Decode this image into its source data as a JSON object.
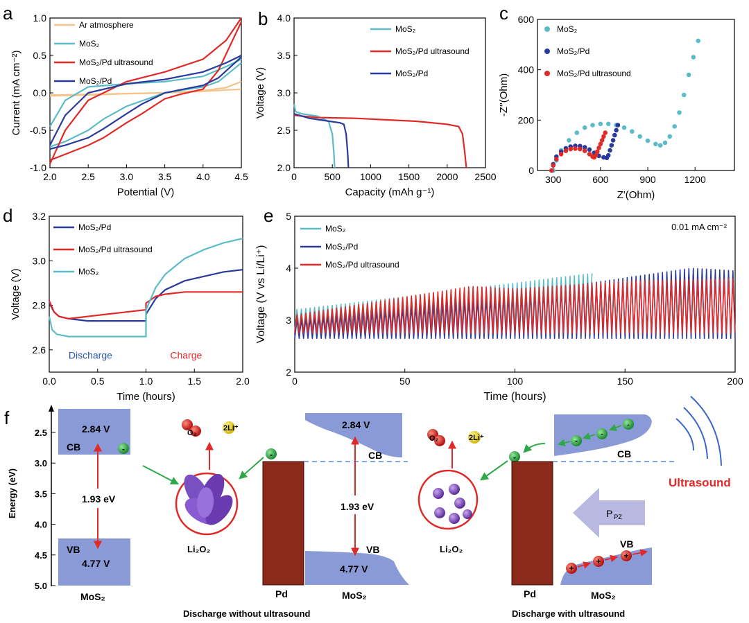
{
  "colors": {
    "ar": "#f5c48a",
    "mos2": "#5bbcc8",
    "pd": "#2a3a9a",
    "us": "#e02a28",
    "band": "#8a9ad6",
    "pdbar": "#8b2a1a",
    "arrow_green": "#2fa84a",
    "arrow_red": "#e02a28",
    "ultrasound": "#e02a28",
    "ppz": "#b8b8e0",
    "text_blue": "#2a5ab0"
  },
  "chart_data": [
    {
      "panel": "a",
      "type": "line",
      "xlabel": "Potential (V)",
      "ylabel": "Current (mA cm⁻²)",
      "xlim": [
        2.0,
        4.5
      ],
      "ylim": [
        -1.0,
        1.0
      ],
      "xticks": [
        "2.0",
        "2.5",
        "3.0",
        "3.5",
        "4.0",
        "4.5"
      ],
      "yticks": [
        "-1.0",
        "-0.5",
        "0.0",
        "0.5",
        "1.0"
      ],
      "legend": "top-left",
      "series": [
        {
          "name": "Ar atmosphere",
          "color": "ar",
          "loops": [
            {
              "x": [
                2.0,
                2.5,
                3.0,
                3.5,
                4.0,
                4.3,
                4.5
              ],
              "y": [
                -0.03,
                -0.02,
                -0.01,
                0.0,
                0.03,
                0.07,
                0.15
              ]
            },
            {
              "x": [
                4.5,
                4.0,
                3.5,
                3.0,
                2.5,
                2.0
              ],
              "y": [
                0.05,
                0.02,
                0.0,
                -0.01,
                -0.03,
                -0.04
              ]
            }
          ]
        },
        {
          "name": "MoS₂",
          "color": "mos2",
          "loops": [
            {
              "x": [
                2.0,
                2.2,
                2.5,
                3.0,
                3.5,
                4.0,
                4.3,
                4.5
              ],
              "y": [
                -0.45,
                -0.1,
                0.08,
                0.12,
                0.15,
                0.22,
                0.35,
                0.45
              ]
            },
            {
              "x": [
                4.5,
                4.2,
                4.0,
                3.5,
                3.0,
                2.7,
                2.5,
                2.2,
                2.0
              ],
              "y": [
                0.4,
                0.15,
                0.08,
                0.0,
                -0.18,
                -0.35,
                -0.5,
                -0.65,
                -0.72
              ]
            }
          ]
        },
        {
          "name": "MoS₂/Pd ultrasound",
          "color": "us",
          "loops": [
            {
              "x": [
                2.0,
                2.2,
                2.5,
                3.0,
                3.5,
                4.0,
                4.3,
                4.5
              ],
              "y": [
                -0.95,
                -0.5,
                -0.1,
                0.15,
                0.28,
                0.45,
                0.7,
                1.0
              ]
            },
            {
              "x": [
                4.5,
                4.2,
                4.0,
                3.7,
                3.5,
                3.2,
                3.0,
                2.7,
                2.5,
                2.2,
                2.0
              ],
              "y": [
                0.95,
                0.3,
                0.05,
                -0.02,
                -0.08,
                -0.28,
                -0.4,
                -0.6,
                -0.7,
                -0.82,
                -0.9
              ]
            }
          ]
        },
        {
          "name": "MoS₂/Pd",
          "color": "pd",
          "loops": [
            {
              "x": [
                2.0,
                2.2,
                2.5,
                3.0,
                3.5,
                4.0,
                4.3,
                4.5
              ],
              "y": [
                -0.7,
                -0.3,
                0.0,
                0.12,
                0.18,
                0.28,
                0.4,
                0.5
              ]
            },
            {
              "x": [
                4.5,
                4.2,
                4.0,
                3.5,
                3.2,
                3.0,
                2.7,
                2.5,
                2.2,
                2.0
              ],
              "y": [
                0.48,
                0.2,
                0.1,
                0.0,
                -0.15,
                -0.28,
                -0.48,
                -0.6,
                -0.7,
                -0.75
              ]
            }
          ]
        }
      ]
    },
    {
      "panel": "b",
      "type": "line",
      "xlabel": "Capacity (mAh g⁻¹)",
      "ylabel": "Voltage (V)",
      "xlim": [
        0,
        2500
      ],
      "ylim": [
        2.0,
        4.0
      ],
      "xticks": [
        "0",
        "500",
        "1000",
        "1500",
        "2000",
        "2500"
      ],
      "yticks": [
        "2.0",
        "2.5",
        "3.0",
        "3.5",
        "4.0"
      ],
      "legend": "top-right",
      "series": [
        {
          "name": "MoS₂",
          "color": "mos2",
          "x": [
            0,
            20,
            100,
            300,
            450,
            500,
            520,
            530
          ],
          "y": [
            2.85,
            2.75,
            2.72,
            2.69,
            2.62,
            2.45,
            2.2,
            2.0
          ]
        },
        {
          "name": "MoS₂/Pd ultrasound",
          "color": "us",
          "x": [
            0,
            300,
            800,
            1200,
            1600,
            2000,
            2150,
            2200,
            2230,
            2250
          ],
          "y": [
            2.7,
            2.67,
            2.66,
            2.64,
            2.62,
            2.58,
            2.55,
            2.45,
            2.2,
            2.0
          ]
        },
        {
          "name": "MoS₂/Pd",
          "color": "pd",
          "x": [
            0,
            200,
            400,
            600,
            650,
            680,
            700,
            710
          ],
          "y": [
            2.72,
            2.66,
            2.63,
            2.6,
            2.58,
            2.45,
            2.2,
            2.0
          ]
        }
      ]
    },
    {
      "panel": "c",
      "type": "scatter",
      "xlabel": "Z'(Ohm)",
      "ylabel": "-Z''(Ohm)",
      "xlim": [
        200,
        1450
      ],
      "ylim": [
        0,
        600
      ],
      "xticks": [
        "300",
        "600",
        "900",
        "1200"
      ],
      "yticks": [
        "0",
        "200",
        "400",
        "600"
      ],
      "legend": "top-left",
      "series": [
        {
          "name": "MoS₂",
          "color": "mos2",
          "x": [
            300,
            320,
            350,
            400,
            450,
            500,
            550,
            600,
            650,
            700,
            750,
            800,
            850,
            900,
            950,
            980,
            1010,
            1040,
            1070,
            1100,
            1130,
            1160,
            1190,
            1220
          ],
          "y": [
            0,
            40,
            80,
            120,
            150,
            170,
            180,
            185,
            185,
            180,
            170,
            155,
            135,
            118,
            105,
            100,
            110,
            135,
            175,
            230,
            300,
            380,
            450,
            515
          ]
        },
        {
          "name": "MoS₂/Pd",
          "color": "pd",
          "x": [
            290,
            300,
            320,
            350,
            380,
            410,
            440,
            470,
            500,
            530,
            560,
            590,
            620,
            640,
            650,
            660,
            670,
            680,
            690,
            700,
            710
          ],
          "y": [
            0,
            25,
            55,
            75,
            88,
            95,
            98,
            97,
            92,
            83,
            70,
            58,
            52,
            50,
            60,
            80,
            100,
            120,
            140,
            160,
            180
          ]
        },
        {
          "name": "MoS₂/Pd ultrasound",
          "color": "us",
          "x": [
            290,
            300,
            320,
            350,
            380,
            410,
            440,
            470,
            500,
            530,
            550,
            560,
            570,
            580,
            590,
            600,
            610,
            620,
            630
          ],
          "y": [
            0,
            20,
            45,
            65,
            78,
            85,
            87,
            85,
            78,
            65,
            55,
            52,
            60,
            75,
            90,
            105,
            120,
            135,
            150
          ]
        }
      ]
    },
    {
      "panel": "d",
      "type": "line",
      "xlabel": "Time (hours)",
      "ylabel": "Voltage (V)",
      "xlim": [
        0,
        2.0
      ],
      "ylim": [
        2.5,
        3.2
      ],
      "xticks": [
        "0.0",
        "0.5",
        "1.0",
        "1.5",
        "2.0"
      ],
      "yticks": [
        "2.6",
        "2.8",
        "3.0",
        "3.2"
      ],
      "legend": "top-left",
      "annotations": {
        "discharge": "Discharge",
        "charge": "Charge"
      },
      "series": [
        {
          "name": "MoS₂/Pd",
          "color": "pd",
          "x": [
            0,
            0.05,
            0.1,
            0.2,
            0.4,
            0.6,
            0.8,
            1.0,
            1.0,
            1.1,
            1.2,
            1.4,
            1.6,
            1.8,
            2.0
          ],
          "y": [
            2.81,
            2.77,
            2.75,
            2.74,
            2.73,
            2.73,
            2.73,
            2.73,
            2.76,
            2.83,
            2.87,
            2.91,
            2.93,
            2.95,
            2.96
          ]
        },
        {
          "name": "MoS₂/Pd ultrasound",
          "color": "us",
          "x": [
            0,
            0.05,
            0.1,
            0.2,
            0.4,
            0.6,
            0.8,
            1.0,
            1.0,
            1.1,
            1.2,
            1.4,
            1.6,
            1.8,
            2.0
          ],
          "y": [
            2.82,
            2.77,
            2.75,
            2.74,
            2.75,
            2.76,
            2.77,
            2.78,
            2.81,
            2.84,
            2.85,
            2.86,
            2.86,
            2.86,
            2.86
          ]
        },
        {
          "name": "MoS₂",
          "color": "mos2",
          "x": [
            0,
            0.03,
            0.08,
            0.2,
            0.4,
            0.6,
            0.8,
            1.0,
            1.0,
            1.1,
            1.2,
            1.4,
            1.6,
            1.8,
            2.0
          ],
          "y": [
            2.75,
            2.69,
            2.67,
            2.66,
            2.66,
            2.66,
            2.66,
            2.66,
            2.78,
            2.88,
            2.94,
            3.01,
            3.05,
            3.08,
            3.1
          ]
        }
      ]
    },
    {
      "panel": "e",
      "type": "line",
      "xlabel": "Time (hours)",
      "ylabel": "Voltage (V vs Li/Li⁺)",
      "xlim": [
        0,
        200
      ],
      "ylim": [
        2,
        5
      ],
      "xticks": [
        "0",
        "50",
        "100",
        "150",
        "200"
      ],
      "yticks": [
        "2",
        "3",
        "4",
        "5"
      ],
      "legend": "top-left",
      "current_label": "0.01 mA cm⁻²",
      "series": [
        {
          "name": "MoS₂",
          "color": "mos2",
          "period": 2.0,
          "lo": [
            [
              0,
              2.8
            ],
            [
              60,
              2.85
            ],
            [
              135,
              2.8
            ]
          ],
          "hi": [
            [
              0,
              3.2
            ],
            [
              60,
              3.5
            ],
            [
              135,
              3.9
            ]
          ],
          "end": 135
        },
        {
          "name": "MoS₂/Pd",
          "color": "pd",
          "period": 2.0,
          "lo": [
            [
              0,
              2.65
            ],
            [
              100,
              2.65
            ],
            [
              200,
              2.65
            ]
          ],
          "hi": [
            [
              0,
              3.0
            ],
            [
              100,
              3.5
            ],
            [
              180,
              4.0
            ],
            [
              200,
              3.95
            ]
          ],
          "end": 200
        },
        {
          "name": "MoS₂/Pd ultrasound",
          "color": "us",
          "period": 2.0,
          "lo": [
            [
              0,
              2.75
            ],
            [
              100,
              2.75
            ],
            [
              200,
              2.75
            ]
          ],
          "hi": [
            [
              0,
              3.1
            ],
            [
              80,
              3.65
            ],
            [
              100,
              3.6
            ],
            [
              150,
              3.75
            ],
            [
              200,
              3.8
            ]
          ],
          "end": 200
        }
      ]
    }
  ],
  "panels": {
    "a": "a",
    "b": "b",
    "c": "c",
    "d": "d",
    "e": "e",
    "f": "f"
  },
  "diagram_f": {
    "energy_axis": {
      "label": "Energy (eV)",
      "ticks": [
        "2.5",
        "3.0",
        "3.5",
        "4.0",
        "4.5",
        "5.0"
      ]
    },
    "left": {
      "cb_label": "CB",
      "cb_voltage": "2.84 V",
      "vb_label": "VB",
      "vb_voltage": "4.77 V",
      "gap": "1.93 eV",
      "material": "MoS₂"
    },
    "middle": {
      "o2": "O₂",
      "li": "2Li⁺",
      "product": "Li₂O₂",
      "pd": "Pd",
      "material": "MoS₂",
      "cb_label": "CB",
      "cb_voltage": "2.84 V",
      "vb_label": "VB",
      "vb_voltage": "4.77 V",
      "gap": "1.93 eV",
      "caption": "Discharge without ultrasound"
    },
    "right": {
      "o2": "O₂",
      "li": "2Li⁺",
      "product": "Li₂O₂",
      "pd": "Pd",
      "material": "MoS₂",
      "cb_label": "CB",
      "vb_label": "VB",
      "ppz": "P",
      "ppz_sub": "PZ",
      "ultrasound": "Ultrasound",
      "caption": "Discharge with ultrasound"
    },
    "electron_sign": "-",
    "hole_sign": "+"
  }
}
